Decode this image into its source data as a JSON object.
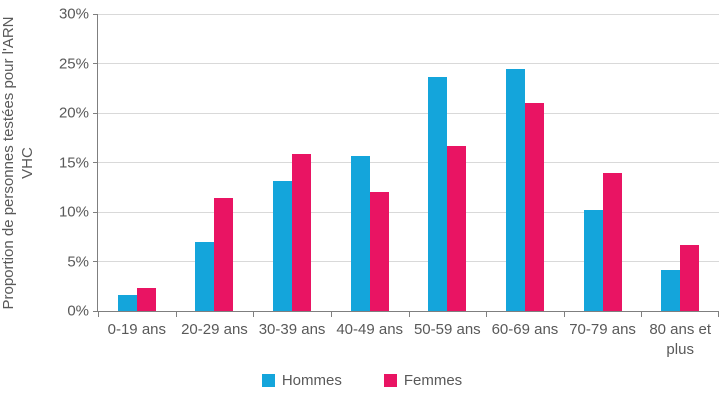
{
  "chart_data": {
    "type": "bar",
    "title": "",
    "ylabel": "Proportion de personnes testées pour l'ARN VHC",
    "xlabel": "",
    "categories": [
      "0-19 ans",
      "20-29 ans",
      "30-39 ans",
      "40-49 ans",
      "50-59 ans",
      "60-69 ans",
      "70-79 ans",
      "80 ans et plus"
    ],
    "series": [
      {
        "name": "Hommes",
        "color": "#14a5db",
        "values": [
          1.6,
          7.0,
          13.1,
          15.7,
          23.6,
          24.4,
          10.2,
          4.1
        ]
      },
      {
        "name": "Femmes",
        "color": "#e91463",
        "values": [
          2.3,
          11.4,
          15.9,
          12.0,
          16.7,
          21.0,
          13.9,
          6.7
        ]
      }
    ],
    "ylim": [
      0,
      30
    ],
    "ytick_step": 5,
    "ytick_labels": [
      "0%",
      "5%",
      "10%",
      "15%",
      "20%",
      "25%",
      "30%"
    ],
    "grid": "horizontal",
    "gridline_color": "#d9d9d9",
    "axis_color": "#7f7f7f",
    "text_color": "#595959",
    "legend_position": "bottom"
  }
}
